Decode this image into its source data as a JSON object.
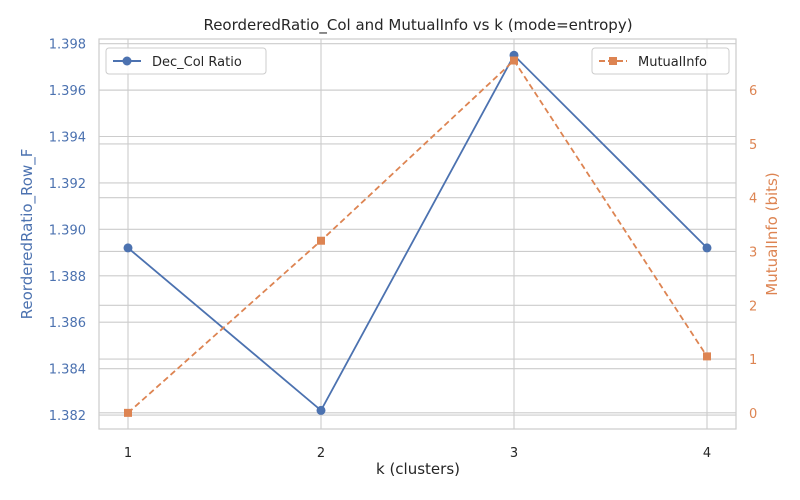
{
  "chart_data": {
    "type": "line",
    "title": "ReorderedRatio_Col and MutualInfo vs k (mode=entropy)",
    "xlabel": "k (clusters)",
    "ylabel_left": "ReorderedRatio_Row_F",
    "ylabel_right": "MutualInfo (bits)",
    "x": [
      1,
      2,
      3,
      4
    ],
    "x_ticks": [
      "1",
      "2",
      "3",
      "4"
    ],
    "ylim_left": [
      1.3814,
      1.3982
    ],
    "ylim_right": [
      -0.3,
      6.95
    ],
    "left_ticks": [
      "1.382",
      "1.384",
      "1.386",
      "1.388",
      "1.390",
      "1.392",
      "1.394",
      "1.396",
      "1.398"
    ],
    "right_ticks": [
      "0",
      "1",
      "2",
      "3",
      "4",
      "5",
      "6"
    ],
    "grid": true,
    "series": [
      {
        "name": "Dec_Col Ratio",
        "axis": "left",
        "color": "#4c72b0",
        "marker": "circle",
        "line_style": "solid",
        "values": [
          1.3892,
          1.3822,
          1.3975,
          1.3892
        ],
        "legend_position": "top-left"
      },
      {
        "name": "MutualInfo",
        "axis": "right",
        "color": "#dd8452",
        "marker": "square",
        "line_style": "dashed",
        "values": [
          0.0,
          3.2,
          6.55,
          1.05
        ],
        "legend_position": "top-right"
      }
    ]
  }
}
